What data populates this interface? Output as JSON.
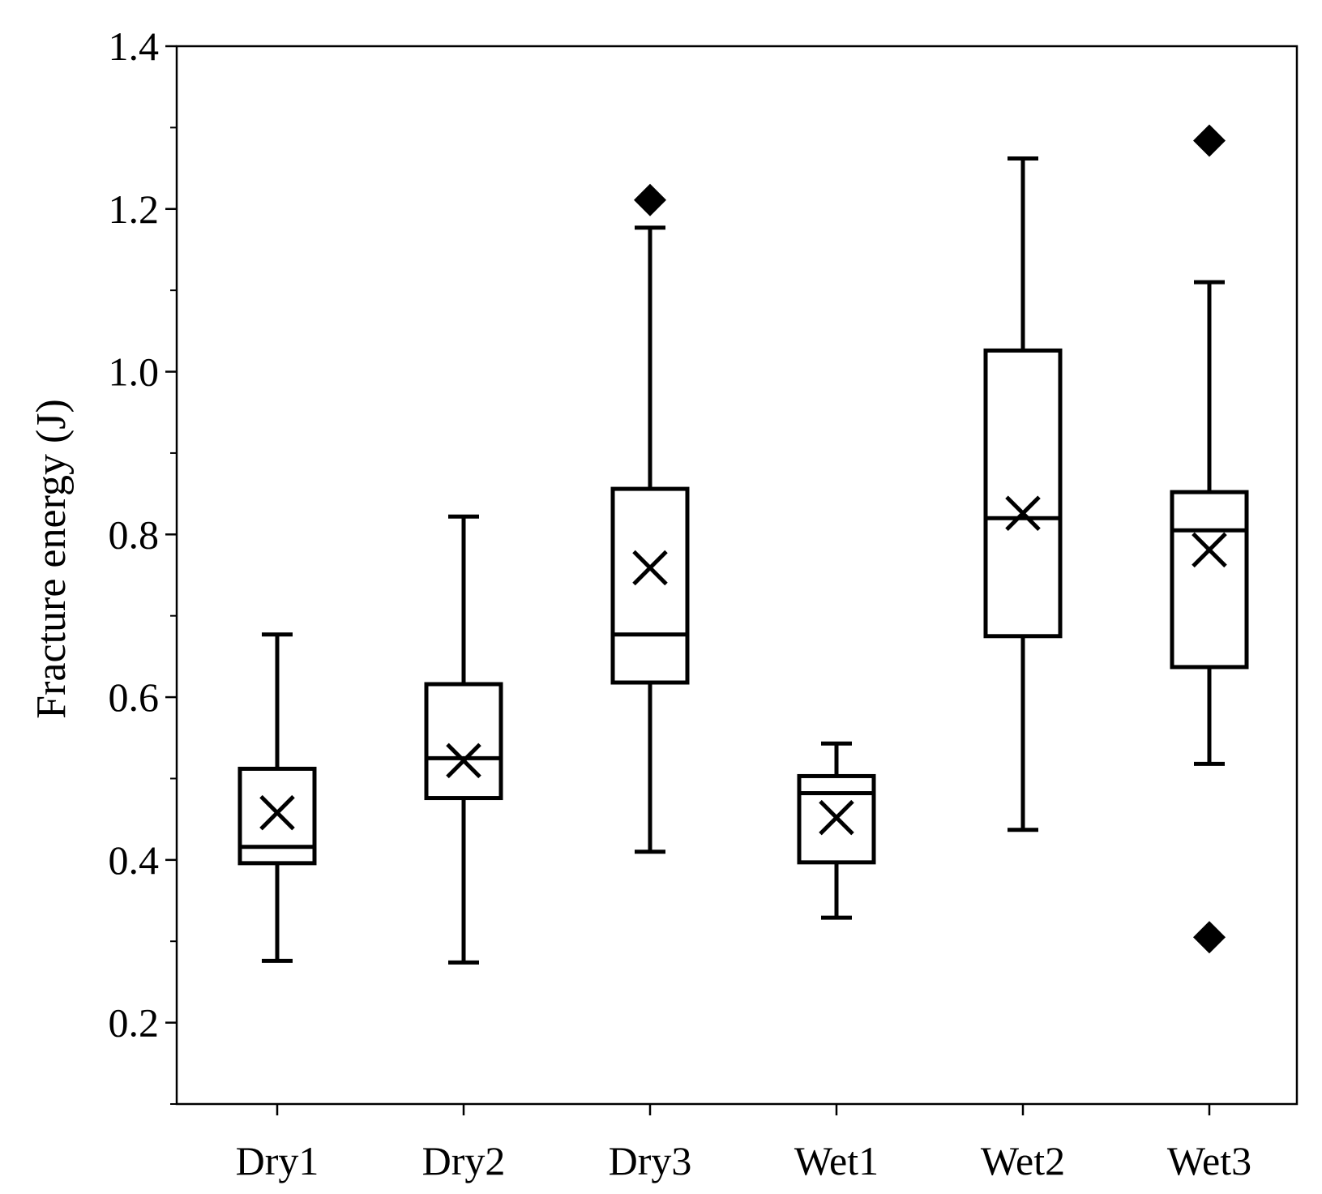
{
  "chart_data": {
    "type": "box",
    "title": "",
    "xlabel": "",
    "ylabel": "Fracture energy (J)",
    "ylim": [
      0.1,
      1.4
    ],
    "yticks": [
      "0.2",
      "0.4",
      "0.6",
      "0.8",
      "1.0",
      "1.2",
      "1.4"
    ],
    "categories": [
      "Dry1",
      "Dry2",
      "Dry3",
      "Wet1",
      "Wet2",
      "Wet3"
    ],
    "boxes": [
      {
        "category": "Dry1",
        "whisker_low": 0.276,
        "q1": 0.396,
        "median": 0.416,
        "q3": 0.512,
        "whisker_high": 0.677,
        "mean": 0.458,
        "outliers": []
      },
      {
        "category": "Dry2",
        "whisker_low": 0.274,
        "q1": 0.476,
        "median": 0.525,
        "q3": 0.616,
        "whisker_high": 0.822,
        "mean": 0.522,
        "outliers": []
      },
      {
        "category": "Dry3",
        "whisker_low": 0.41,
        "q1": 0.618,
        "median": 0.677,
        "q3": 0.856,
        "whisker_high": 1.177,
        "mean": 0.759,
        "outliers": [
          1.211
        ]
      },
      {
        "category": "Wet1",
        "whisker_low": 0.329,
        "q1": 0.397,
        "median": 0.482,
        "q3": 0.503,
        "whisker_high": 0.543,
        "mean": 0.452,
        "outliers": []
      },
      {
        "category": "Wet2",
        "whisker_low": 0.437,
        "q1": 0.675,
        "median": 0.82,
        "q3": 1.026,
        "whisker_high": 1.262,
        "mean": 0.826,
        "outliers": []
      },
      {
        "category": "Wet3",
        "whisker_low": 0.518,
        "q1": 0.637,
        "median": 0.805,
        "q3": 0.852,
        "whisker_high": 1.11,
        "mean": 0.781,
        "outliers": [
          1.284,
          0.305
        ]
      }
    ],
    "grid": false,
    "legend": "none",
    "colors": {
      "stroke": "#000000",
      "box_fill": "#ffffff",
      "outlier": "#000000"
    },
    "markers": {
      "mean": "x-mark",
      "outlier": "diamond"
    }
  }
}
